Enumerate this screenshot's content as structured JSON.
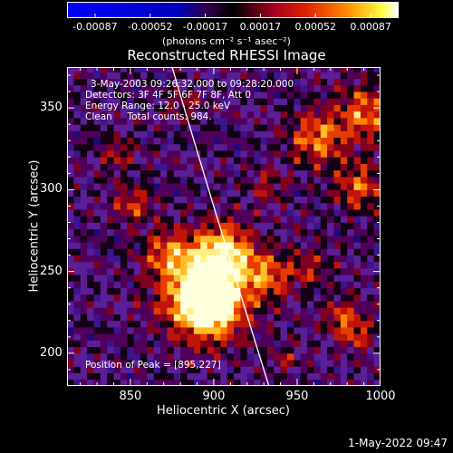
{
  "chart_data": {
    "type": "heatmap",
    "title": "Reconstructed RHESSI Image",
    "xlabel": "Heliocentric X (arcsec)",
    "ylabel": "Heliocentric Y (arcsec)",
    "xlim": [
      812,
      1000
    ],
    "ylim": [
      180,
      375
    ],
    "x_ticks": [
      "850",
      "900",
      "950",
      "1000"
    ],
    "y_ticks": [
      "200",
      "250",
      "300",
      "350"
    ],
    "colorbar": {
      "ticks": [
        "-0.00087",
        "-0.00052",
        "-0.00017",
        "0.00017",
        "0.00052",
        "0.00087"
      ],
      "units_label": "(photons cm⁻² s⁻¹ asec⁻²)",
      "range": [
        -0.00087,
        0.00087
      ]
    },
    "annotations": [
      "3-May-2003 09:26:32.000 to 09:28:20.000",
      "Detectors: 3F 4F 5F 6F 7F 8F, Att 0",
      "Energy Range: 12.0 - 25.0 keV",
      "Clean     Total counts: 984."
    ],
    "peak_label": "Position of Peak = [895,227]",
    "peak": [
      895,
      227
    ]
  },
  "footer": "1-May-2022 09:47",
  "colors": {
    "background": "#000000",
    "limb_line": "#ffffff"
  }
}
